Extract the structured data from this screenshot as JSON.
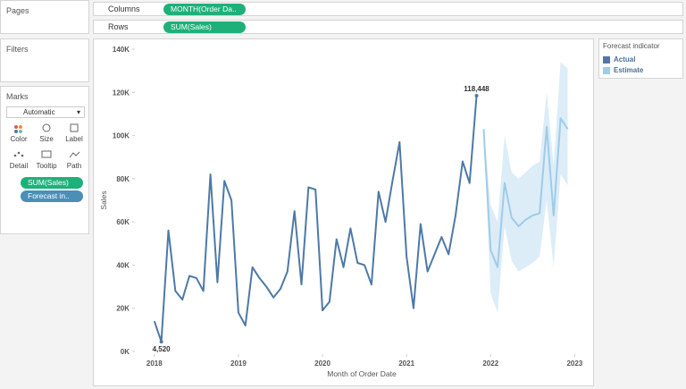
{
  "shelves": {
    "pages": "Pages",
    "columns_label": "Columns",
    "columns_pill": "MONTH(Order Da..",
    "rows_label": "Rows",
    "rows_pill": "SUM(Sales)"
  },
  "filters": "Filters",
  "marks": {
    "title": "Marks",
    "mark_type": "Automatic",
    "buttons": [
      "Color",
      "Size",
      "Label",
      "Detail",
      "Tooltip",
      "Path"
    ],
    "pills": [
      "SUM(Sales)",
      "Forecast in.."
    ]
  },
  "chart_data": {
    "type": "line",
    "legend_title": "Forecast indicator",
    "x_label": "Month of Order Date",
    "y_label": "Sales",
    "xlim": [
      2017.29,
      2023.23
    ],
    "xticks": [
      2018,
      2019,
      2020,
      2021,
      2022,
      2023
    ],
    "ylim": [
      0,
      140
    ],
    "yticks": [
      {
        "value": 0,
        "label": "0K"
      },
      {
        "value": 20,
        "label": "20K"
      },
      {
        "value": 40,
        "label": "40K"
      },
      {
        "value": 60,
        "label": "60K"
      },
      {
        "value": 80,
        "label": "80K"
      },
      {
        "value": 100,
        "label": "100K"
      },
      {
        "value": 120,
        "label": "120K"
      },
      {
        "value": 140,
        "label": "140K"
      }
    ],
    "grid": false,
    "series": [
      {
        "name": "Actual",
        "color": "#4e79a7",
        "x": [
          2018,
          2018.083,
          2018.167,
          2018.25,
          2018.333,
          2018.417,
          2018.5,
          2018.583,
          2018.667,
          2018.75,
          2018.833,
          2018.917,
          2019,
          2019.083,
          2019.167,
          2019.25,
          2019.333,
          2019.417,
          2019.5,
          2019.583,
          2019.667,
          2019.75,
          2019.833,
          2019.917,
          2020,
          2020.083,
          2020.167,
          2020.25,
          2020.333,
          2020.417,
          2020.5,
          2020.583,
          2020.667,
          2020.75,
          2020.833,
          2020.917,
          2021,
          2021.083,
          2021.167,
          2021.25,
          2021.333,
          2021.417,
          2021.5,
          2021.583,
          2021.667,
          2021.75,
          2021.833
        ],
        "values": [
          14,
          4.52,
          56,
          28,
          24,
          35,
          34,
          28,
          82,
          32,
          79,
          70,
          18,
          12,
          39,
          34,
          30,
          25,
          29,
          37,
          65,
          31,
          76,
          75,
          19,
          23,
          52,
          39,
          57,
          41,
          40,
          31,
          74,
          60,
          79,
          97,
          44,
          20,
          59,
          37,
          45,
          53,
          45,
          63,
          88,
          78,
          118.448
        ],
        "value_labels": [
          null,
          "4,520",
          null,
          null,
          null,
          null,
          null,
          null,
          null,
          null,
          null,
          null,
          null,
          null,
          null,
          null,
          null,
          null,
          null,
          null,
          null,
          null,
          null,
          null,
          null,
          null,
          null,
          null,
          null,
          null,
          null,
          null,
          null,
          null,
          null,
          null,
          null,
          null,
          null,
          null,
          null,
          null,
          null,
          null,
          null,
          null,
          "118,448"
        ]
      },
      {
        "name": "Estimate",
        "color": "#a0cbe8",
        "band_color": "#dcedf8",
        "x": [
          2021.917,
          2022,
          2022.083,
          2022.167,
          2022.25,
          2022.333,
          2022.417,
          2022.5,
          2022.583,
          2022.667,
          2022.75,
          2022.833,
          2022.917
        ],
        "values": [
          103,
          47,
          39,
          78,
          62,
          58,
          61,
          63,
          64,
          104,
          63,
          108,
          103
        ],
        "band_lower": [
          103,
          27,
          18,
          58,
          42,
          37,
          39,
          41,
          44,
          70,
          39,
          82,
          77
        ],
        "band_upper": [
          103,
          68,
          60,
          100,
          83,
          80,
          83,
          86,
          88,
          120,
          86,
          134,
          131
        ]
      }
    ]
  }
}
